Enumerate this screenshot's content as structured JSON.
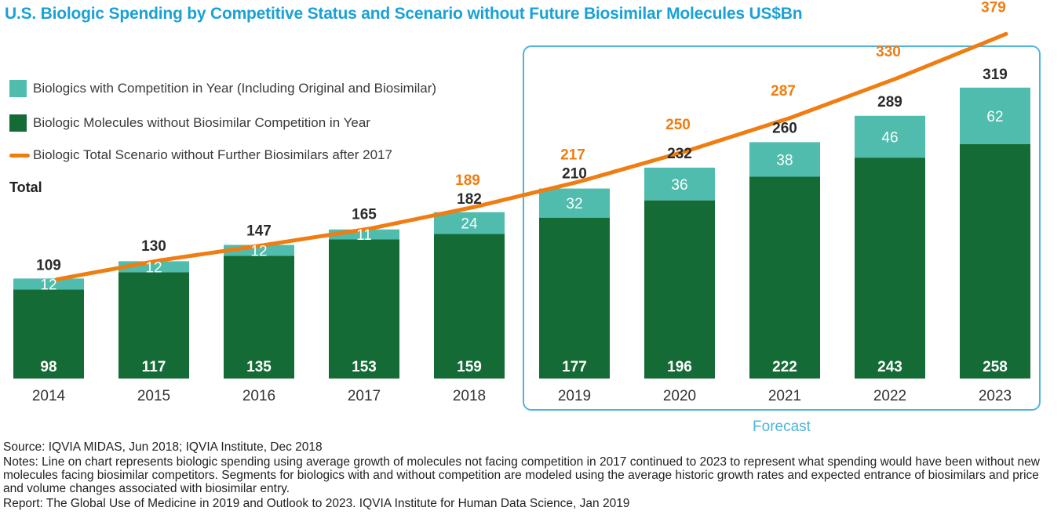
{
  "title": "U.S. Biologic Spending by Competitive Status and Scenario without Future Biosimilar Molecules US$Bn",
  "colors": {
    "title": "#1aa1d6",
    "competition": "#50bcad",
    "no_competition": "#146b35",
    "total_line": "#ef7d11",
    "forecast_box": "#4fb4dc",
    "total_text": "#2b2b2b"
  },
  "legend": [
    {
      "label": "Biologics with Competition in Year (Including Original and Biosimilar)",
      "kind": "swatch",
      "color_key": "competition"
    },
    {
      "label": "Biologic Molecules without Biosimilar Competition in Year",
      "kind": "swatch",
      "color_key": "no_competition"
    },
    {
      "label": "Biologic Total Scenario without Further Biosimilars after 2017",
      "kind": "line",
      "color_key": "total_line"
    }
  ],
  "total_label": "Total",
  "forecast_label": "Forecast",
  "footnotes": {
    "source": "Source: IQVIA MIDAS, Jun 2018; IQVIA Institute, Dec 2018",
    "notes": "Notes: Line on chart represents biologic spending using average growth of molecules not facing competition in 2017 continued to 2023 to represent what spending would have been without new molecules facing biosimilar competitors. Segments for biologics with and without competition are modeled using the average historic growth rates and expected entrance of biosimilars and price and volume changes associated with biosimilar entry.",
    "report": "Report: The Global Use of Medicine in 2019 and Outlook to 2023. IQVIA Institute for Human Data Science, Jan 2019"
  },
  "chart_data": {
    "type": "bar",
    "stacked": true,
    "categories": [
      "2014",
      "2015",
      "2016",
      "2017",
      "2018",
      "2019",
      "2020",
      "2021",
      "2022",
      "2023"
    ],
    "series": [
      {
        "name": "Biologic Molecules without Biosimilar Competition in Year",
        "values": [
          98,
          117,
          135,
          153,
          159,
          177,
          196,
          222,
          243,
          258
        ]
      },
      {
        "name": "Biologics with Competition in Year (Including Original and Biosimilar)",
        "values": [
          12,
          12,
          12,
          11,
          24,
          32,
          36,
          38,
          46,
          62
        ]
      }
    ],
    "totals": [
      109,
      130,
      147,
      165,
      182,
      210,
      232,
      260,
      289,
      319
    ],
    "line_series": {
      "name": "Biologic Total Scenario without Further Biosimilars after 2017",
      "values": [
        109,
        130,
        147,
        165,
        189,
        217,
        250,
        287,
        330,
        379
      ]
    },
    "line_labels_shown": [
      "",
      "",
      "",
      "",
      "189",
      "217",
      "250",
      "287",
      "330",
      "379"
    ],
    "forecast_categories": [
      "2019",
      "2020",
      "2021",
      "2022",
      "2023"
    ],
    "ylim": [
      0,
      400
    ],
    "grid": false
  }
}
